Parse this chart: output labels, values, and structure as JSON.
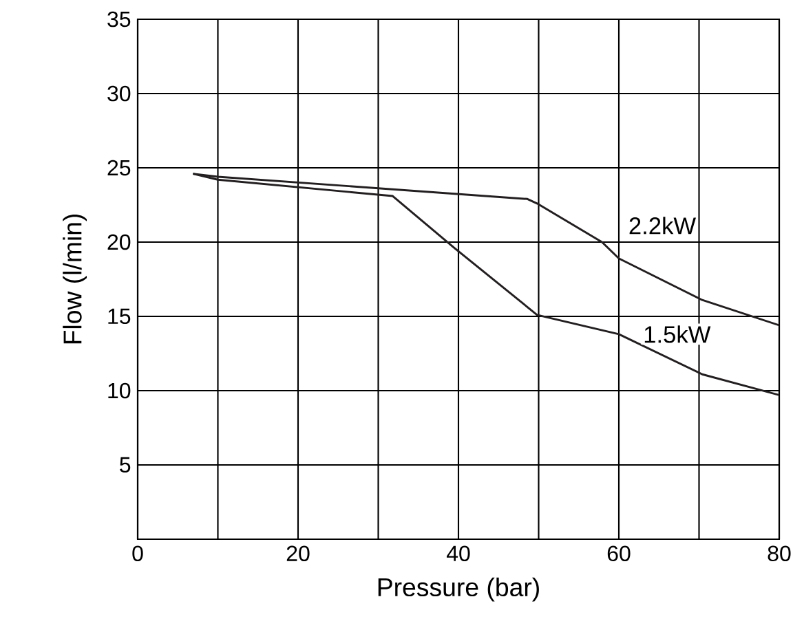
{
  "chart_data": {
    "type": "line",
    "xlabel": "Pressure (bar)",
    "ylabel": "Flow (l/min)",
    "xlim": [
      0,
      80
    ],
    "ylim": [
      0,
      35
    ],
    "xticks": [
      0,
      {
        "value": 10,
        "label": null
      },
      20,
      {
        "value": 30,
        "label": null
      },
      40,
      {
        "value": 50,
        "label": null
      },
      60,
      {
        "value": 70,
        "label": null
      },
      80
    ],
    "yticks": [
      {
        "value": 0,
        "label": null
      },
      5,
      10,
      15,
      20,
      25,
      30,
      35
    ],
    "grid": true,
    "legend": false,
    "marker": "none",
    "line_style": "solid",
    "series": [
      {
        "name": "2.2kW",
        "color": "#231f20",
        "x": [
          6.9,
          10,
          48.6,
          49.8,
          57.9,
          60,
          70.4,
          80
        ],
        "values": [
          24.6,
          24.4,
          22.9,
          22.6,
          20.0,
          18.9,
          16.1,
          14.4
        ]
      },
      {
        "name": "1.5kW",
        "color": "#231f20",
        "x": [
          6.9,
          10,
          31.8,
          39.5,
          49.8,
          60,
          70.4,
          80
        ],
        "values": [
          24.6,
          24.2,
          23.1,
          19.6,
          15.1,
          13.8,
          11.1,
          9.7
        ]
      }
    ]
  }
}
